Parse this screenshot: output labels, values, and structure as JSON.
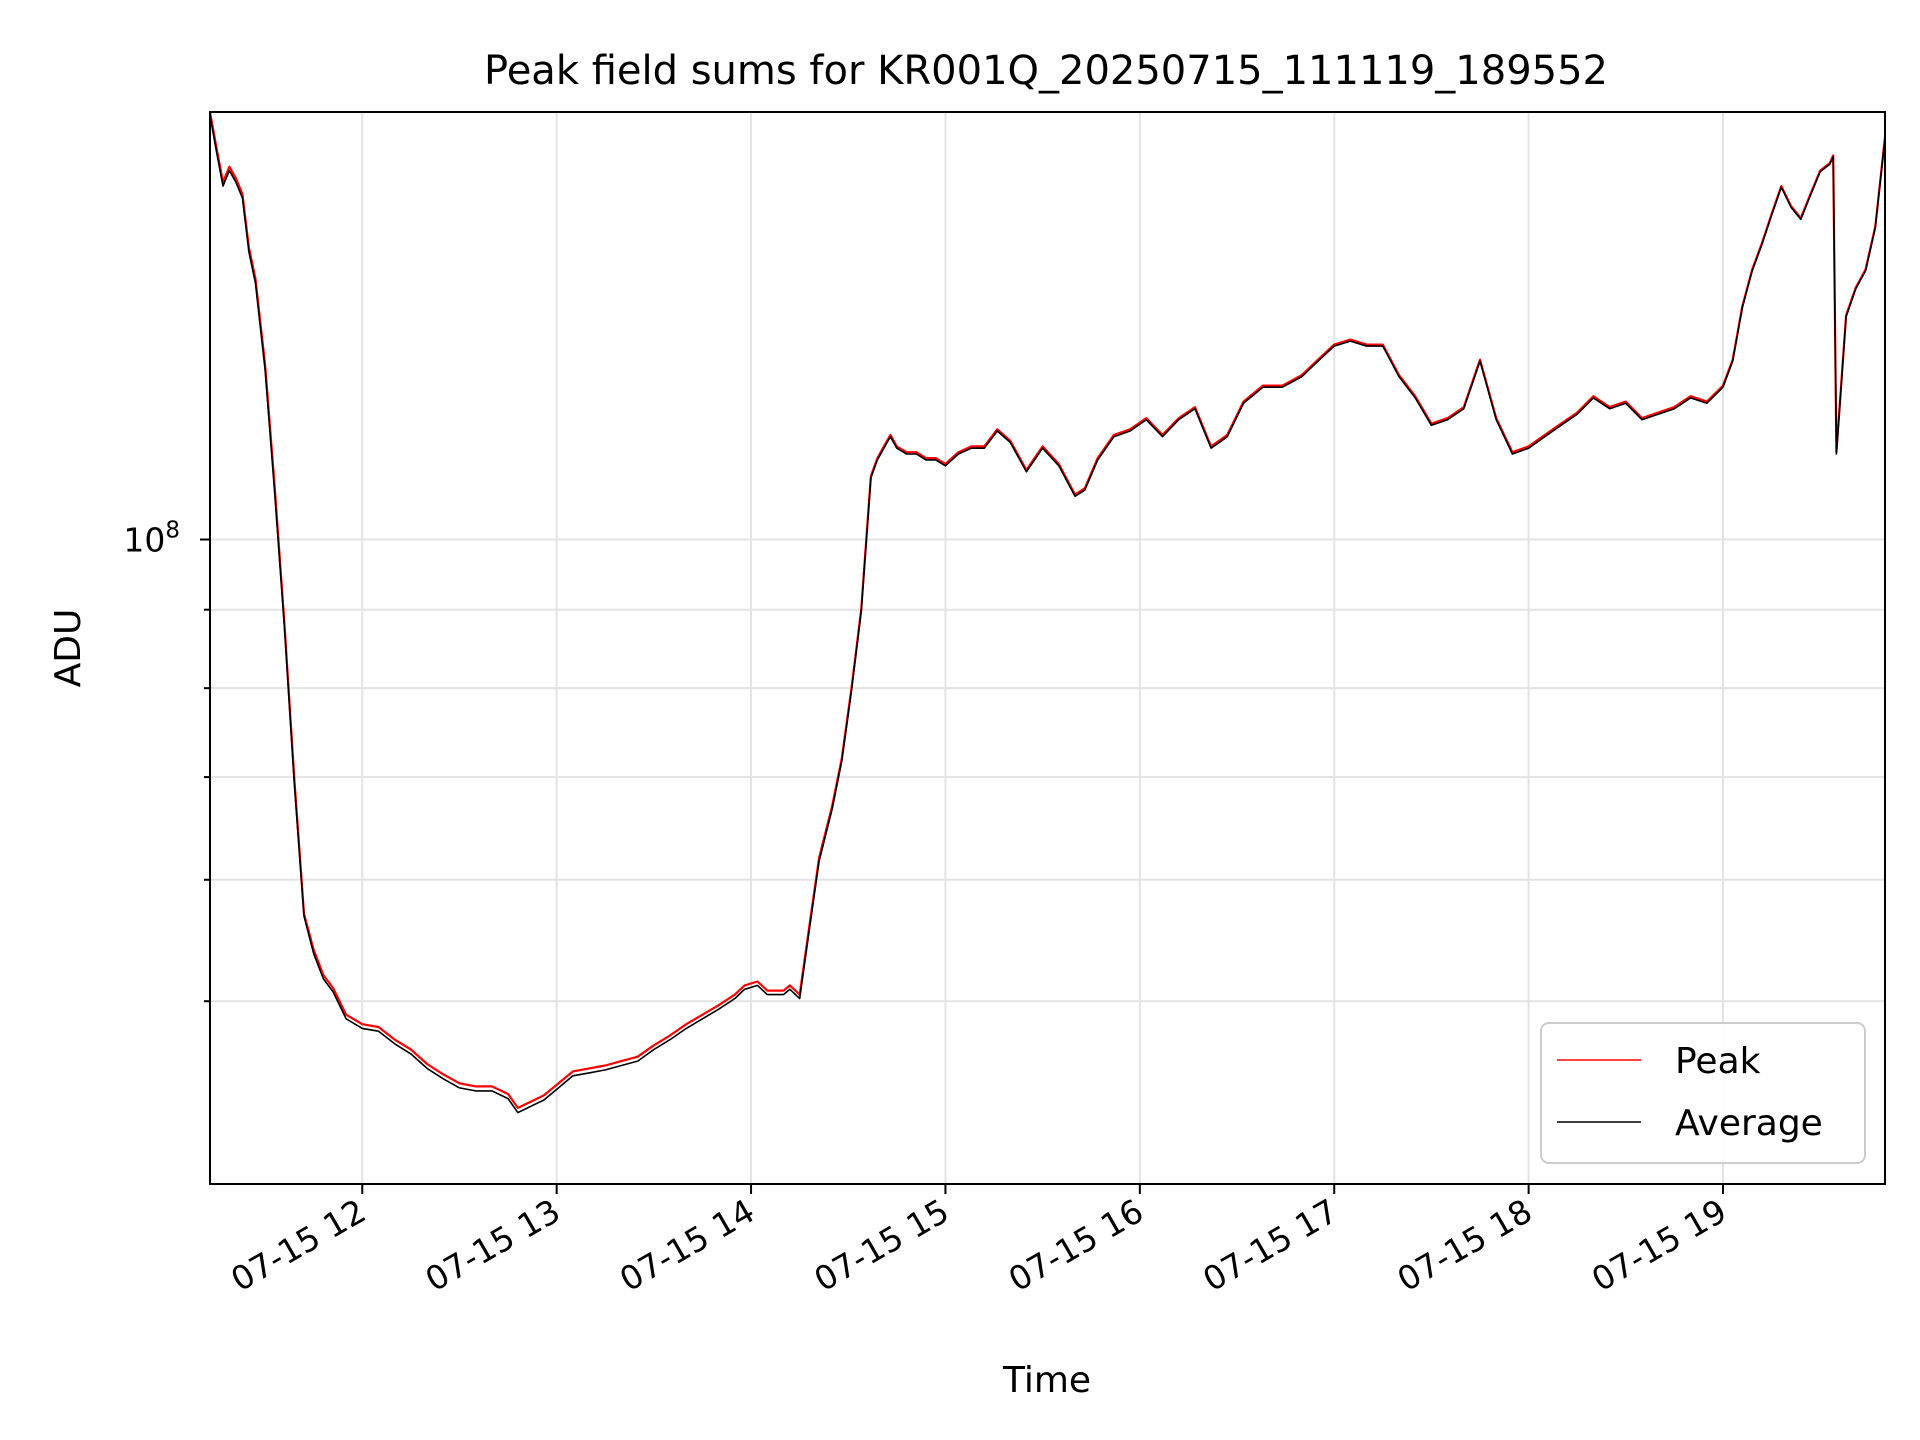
{
  "chart_data": {
    "type": "line",
    "title": "Peak field sums for KR001Q_20250715_111119_189552",
    "xlabel": "Time",
    "ylabel": "ADU",
    "yscale": "log",
    "grid": true,
    "legend_position": "lower-right",
    "xlim": [
      "2025-07-15 11:13",
      "2025-07-15 19:50"
    ],
    "ylim": [
      38000000,
      190000000
    ],
    "x_ticks": [
      {
        "value": "2025-07-15 12:00",
        "label": "07-15 12"
      },
      {
        "value": "2025-07-15 13:00",
        "label": "07-15 13"
      },
      {
        "value": "2025-07-15 14:00",
        "label": "07-15 14"
      },
      {
        "value": "2025-07-15 15:00",
        "label": "07-15 15"
      },
      {
        "value": "2025-07-15 16:00",
        "label": "07-15 16"
      },
      {
        "value": "2025-07-15 17:00",
        "label": "07-15 17"
      },
      {
        "value": "2025-07-15 18:00",
        "label": "07-15 18"
      },
      {
        "value": "2025-07-15 19:00",
        "label": "07-15 19"
      }
    ],
    "y_major_ticks": [
      {
        "value": 100000000,
        "label_base": "10",
        "label_exp": "8"
      }
    ],
    "y_minor_ticks": [
      50000000,
      60000000,
      70000000,
      80000000,
      90000000
    ],
    "series": [
      {
        "name": "Peak",
        "color": "#ff0000",
        "x": [
          "2025-07-15 11:13",
          "2025-07-15 11:15",
          "2025-07-15 11:17",
          "2025-07-15 11:19",
          "2025-07-15 11:21",
          "2025-07-15 11:23",
          "2025-07-15 11:25",
          "2025-07-15 11:27",
          "2025-07-15 11:30",
          "2025-07-15 11:33",
          "2025-07-15 11:36",
          "2025-07-15 11:39",
          "2025-07-15 11:42",
          "2025-07-15 11:45",
          "2025-07-15 11:48",
          "2025-07-15 11:51",
          "2025-07-15 11:55",
          "2025-07-15 12:00",
          "2025-07-15 12:05",
          "2025-07-15 12:10",
          "2025-07-15 12:15",
          "2025-07-15 12:20",
          "2025-07-15 12:25",
          "2025-07-15 12:30",
          "2025-07-15 12:35",
          "2025-07-15 12:40",
          "2025-07-15 12:45",
          "2025-07-15 12:48",
          "2025-07-15 12:52",
          "2025-07-15 12:56",
          "2025-07-15 13:00",
          "2025-07-15 13:05",
          "2025-07-15 13:10",
          "2025-07-15 13:15",
          "2025-07-15 13:20",
          "2025-07-15 13:25",
          "2025-07-15 13:30",
          "2025-07-15 13:35",
          "2025-07-15 13:40",
          "2025-07-15 13:45",
          "2025-07-15 13:50",
          "2025-07-15 13:55",
          "2025-07-15 13:58",
          "2025-07-15 14:02",
          "2025-07-15 14:05",
          "2025-07-15 14:10",
          "2025-07-15 14:12",
          "2025-07-15 14:15",
          "2025-07-15 14:18",
          "2025-07-15 14:21",
          "2025-07-15 14:25",
          "2025-07-15 14:28",
          "2025-07-15 14:31",
          "2025-07-15 14:34",
          "2025-07-15 14:37",
          "2025-07-15 14:39",
          "2025-07-15 14:41",
          "2025-07-15 14:43",
          "2025-07-15 14:45",
          "2025-07-15 14:48",
          "2025-07-15 14:51",
          "2025-07-15 14:54",
          "2025-07-15 14:57",
          "2025-07-15 15:00",
          "2025-07-15 15:04",
          "2025-07-15 15:08",
          "2025-07-15 15:12",
          "2025-07-15 15:16",
          "2025-07-15 15:20",
          "2025-07-15 15:25",
          "2025-07-15 15:30",
          "2025-07-15 15:35",
          "2025-07-15 15:40",
          "2025-07-15 15:43",
          "2025-07-15 15:47",
          "2025-07-15 15:52",
          "2025-07-15 15:57",
          "2025-07-15 16:02",
          "2025-07-15 16:07",
          "2025-07-15 16:12",
          "2025-07-15 16:17",
          "2025-07-15 16:22",
          "2025-07-15 16:27",
          "2025-07-15 16:32",
          "2025-07-15 16:38",
          "2025-07-15 16:44",
          "2025-07-15 16:50",
          "2025-07-15 16:55",
          "2025-07-15 17:00",
          "2025-07-15 17:05",
          "2025-07-15 17:10",
          "2025-07-15 17:15",
          "2025-07-15 17:20",
          "2025-07-15 17:25",
          "2025-07-15 17:30",
          "2025-07-15 17:35",
          "2025-07-15 17:40",
          "2025-07-15 17:45",
          "2025-07-15 17:50",
          "2025-07-15 17:55",
          "2025-07-15 18:00",
          "2025-07-15 18:05",
          "2025-07-15 18:10",
          "2025-07-15 18:15",
          "2025-07-15 18:20",
          "2025-07-15 18:25",
          "2025-07-15 18:30",
          "2025-07-15 18:35",
          "2025-07-15 18:40",
          "2025-07-15 18:45",
          "2025-07-15 18:50",
          "2025-07-15 18:55",
          "2025-07-15 19:00",
          "2025-07-15 19:03",
          "2025-07-15 19:06",
          "2025-07-15 19:09",
          "2025-07-15 19:12",
          "2025-07-15 19:15",
          "2025-07-15 19:18",
          "2025-07-15 19:21",
          "2025-07-15 19:24",
          "2025-07-15 19:27",
          "2025-07-15 19:30",
          "2025-07-15 19:33",
          "2025-07-15 19:34",
          "2025-07-15 19:35",
          "2025-07-15 19:38",
          "2025-07-15 19:41",
          "2025-07-15 19:44",
          "2025-07-15 19:47",
          "2025-07-15 19:50"
        ],
        "values": [
          190000000,
          180000000,
          171000000,
          175000000,
          172000000,
          168000000,
          155000000,
          148000000,
          130000000,
          108000000,
          88000000,
          70000000,
          57000000,
          54000000,
          52000000,
          51000000,
          49000000,
          48300000,
          48100000,
          47200000,
          46500000,
          45500000,
          44800000,
          44200000,
          44000000,
          44000000,
          43500000,
          42600000,
          43000000,
          43400000,
          44100000,
          45000000,
          45200000,
          45400000,
          45700000,
          46000000,
          46800000,
          47500000,
          48300000,
          49000000,
          49700000,
          50500000,
          51200000,
          51500000,
          50800000,
          50800000,
          51200000,
          50500000,
          56000000,
          62000000,
          67000000,
          72000000,
          80000000,
          90000000,
          110000000,
          113000000,
          115000000,
          117000000,
          115000000,
          114000000,
          114000000,
          113000000,
          113000000,
          112000000,
          114000000,
          115000000,
          115000000,
          118000000,
          116000000,
          111000000,
          115000000,
          112000000,
          107000000,
          108000000,
          113000000,
          117000000,
          118000000,
          120000000,
          117000000,
          120000000,
          122000000,
          115000000,
          117000000,
          123000000,
          126000000,
          126000000,
          128000000,
          131000000,
          134000000,
          135000000,
          134000000,
          134000000,
          128000000,
          124000000,
          119000000,
          120000000,
          122000000,
          131000000,
          120000000,
          114000000,
          115000000,
          117000000,
          119000000,
          121000000,
          124000000,
          122000000,
          123000000,
          120000000,
          121000000,
          122000000,
          124000000,
          123000000,
          126000000,
          131000000,
          142000000,
          150000000,
          156000000,
          163000000,
          170000000,
          165000000,
          162000000,
          168000000,
          174000000,
          176000000,
          178000000,
          114000000,
          140000000,
          146000000,
          150000000,
          160000000,
          183000000
        ]
      },
      {
        "name": "Average",
        "color": "#000000",
        "x": [
          "2025-07-15 11:13",
          "2025-07-15 11:15",
          "2025-07-15 11:17",
          "2025-07-15 11:19",
          "2025-07-15 11:21",
          "2025-07-15 11:23",
          "2025-07-15 11:25",
          "2025-07-15 11:27",
          "2025-07-15 11:30",
          "2025-07-15 11:33",
          "2025-07-15 11:36",
          "2025-07-15 11:39",
          "2025-07-15 11:42",
          "2025-07-15 11:45",
          "2025-07-15 11:48",
          "2025-07-15 11:51",
          "2025-07-15 11:55",
          "2025-07-15 12:00",
          "2025-07-15 12:05",
          "2025-07-15 12:10",
          "2025-07-15 12:15",
          "2025-07-15 12:20",
          "2025-07-15 12:25",
          "2025-07-15 12:30",
          "2025-07-15 12:35",
          "2025-07-15 12:40",
          "2025-07-15 12:45",
          "2025-07-15 12:48",
          "2025-07-15 12:52",
          "2025-07-15 12:56",
          "2025-07-15 13:00",
          "2025-07-15 13:05",
          "2025-07-15 13:10",
          "2025-07-15 13:15",
          "2025-07-15 13:20",
          "2025-07-15 13:25",
          "2025-07-15 13:30",
          "2025-07-15 13:35",
          "2025-07-15 13:40",
          "2025-07-15 13:45",
          "2025-07-15 13:50",
          "2025-07-15 13:55",
          "2025-07-15 13:58",
          "2025-07-15 14:02",
          "2025-07-15 14:05",
          "2025-07-15 14:10",
          "2025-07-15 14:12",
          "2025-07-15 14:15",
          "2025-07-15 14:18",
          "2025-07-15 14:21",
          "2025-07-15 14:25",
          "2025-07-15 14:28",
          "2025-07-15 14:31",
          "2025-07-15 14:34",
          "2025-07-15 14:37",
          "2025-07-15 14:39",
          "2025-07-15 14:41",
          "2025-07-15 14:43",
          "2025-07-15 14:45",
          "2025-07-15 14:48",
          "2025-07-15 14:51",
          "2025-07-15 14:54",
          "2025-07-15 14:57",
          "2025-07-15 15:00",
          "2025-07-15 15:04",
          "2025-07-15 15:08",
          "2025-07-15 15:12",
          "2025-07-15 15:16",
          "2025-07-15 15:20",
          "2025-07-15 15:25",
          "2025-07-15 15:30",
          "2025-07-15 15:35",
          "2025-07-15 15:40",
          "2025-07-15 15:43",
          "2025-07-15 15:47",
          "2025-07-15 15:52",
          "2025-07-15 15:57",
          "2025-07-15 16:02",
          "2025-07-15 16:07",
          "2025-07-15 16:12",
          "2025-07-15 16:17",
          "2025-07-15 16:22",
          "2025-07-15 16:27",
          "2025-07-15 16:32",
          "2025-07-15 16:38",
          "2025-07-15 16:44",
          "2025-07-15 16:50",
          "2025-07-15 16:55",
          "2025-07-15 17:00",
          "2025-07-15 17:05",
          "2025-07-15 17:10",
          "2025-07-15 17:15",
          "2025-07-15 17:20",
          "2025-07-15 17:25",
          "2025-07-15 17:30",
          "2025-07-15 17:35",
          "2025-07-15 17:40",
          "2025-07-15 17:45",
          "2025-07-15 17:50",
          "2025-07-15 17:55",
          "2025-07-15 18:00",
          "2025-07-15 18:05",
          "2025-07-15 18:10",
          "2025-07-15 18:15",
          "2025-07-15 18:20",
          "2025-07-15 18:25",
          "2025-07-15 18:30",
          "2025-07-15 18:35",
          "2025-07-15 18:40",
          "2025-07-15 18:45",
          "2025-07-15 18:50",
          "2025-07-15 18:55",
          "2025-07-15 19:00",
          "2025-07-15 19:03",
          "2025-07-15 19:06",
          "2025-07-15 19:09",
          "2025-07-15 19:12",
          "2025-07-15 19:15",
          "2025-07-15 19:18",
          "2025-07-15 19:21",
          "2025-07-15 19:24",
          "2025-07-15 19:27",
          "2025-07-15 19:30",
          "2025-07-15 19:33",
          "2025-07-15 19:34",
          "2025-07-15 19:35",
          "2025-07-15 19:38",
          "2025-07-15 19:41",
          "2025-07-15 19:44",
          "2025-07-15 19:47",
          "2025-07-15 19:50"
        ],
        "values": [
          189000000,
          179000000,
          170000000,
          174000000,
          171000000,
          167000000,
          154000000,
          147000000,
          129000000,
          107000000,
          87500000,
          69500000,
          56800000,
          53700000,
          51700000,
          50700000,
          48700000,
          48000000,
          47800000,
          46900000,
          46200000,
          45200000,
          44500000,
          43900000,
          43700000,
          43700000,
          43200000,
          42300000,
          42700000,
          43100000,
          43800000,
          44700000,
          44900000,
          45100000,
          45400000,
          45700000,
          46500000,
          47200000,
          48000000,
          48700000,
          49400000,
          50200000,
          50900000,
          51200000,
          50500000,
          50500000,
          50900000,
          50200000,
          55700000,
          61700000,
          66700000,
          71700000,
          79700000,
          89700000,
          109700000,
          112700000,
          114700000,
          116700000,
          114700000,
          113700000,
          113700000,
          112700000,
          112700000,
          111700000,
          113700000,
          114700000,
          114700000,
          117700000,
          115700000,
          110700000,
          114700000,
          111700000,
          106700000,
          107700000,
          112700000,
          116700000,
          117700000,
          119700000,
          116700000,
          119700000,
          121700000,
          114700000,
          116700000,
          122700000,
          125700000,
          125700000,
          127700000,
          130700000,
          133700000,
          134700000,
          133700000,
          133700000,
          127700000,
          123700000,
          118700000,
          119700000,
          121700000,
          130700000,
          119700000,
          113700000,
          114700000,
          116700000,
          118700000,
          120700000,
          123700000,
          121700000,
          122700000,
          119700000,
          120700000,
          121700000,
          123700000,
          122700000,
          125700000,
          130700000,
          141700000,
          149700000,
          155700000,
          162700000,
          169700000,
          164700000,
          161700000,
          167700000,
          173700000,
          175700000,
          177700000,
          113700000,
          139700000,
          145700000,
          149700000,
          159700000,
          182700000
        ]
      }
    ]
  }
}
